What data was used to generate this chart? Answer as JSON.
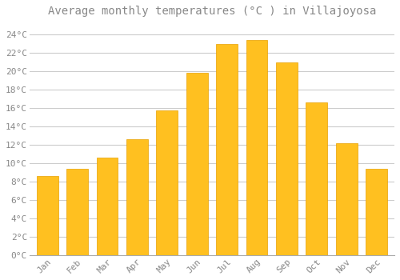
{
  "title": "Average monthly temperatures (°C ) in Villajoyosa",
  "months": [
    "Jan",
    "Feb",
    "Mar",
    "Apr",
    "May",
    "Jun",
    "Jul",
    "Aug",
    "Sep",
    "Oct",
    "Nov",
    "Dec"
  ],
  "temperatures": [
    8.6,
    9.4,
    10.6,
    12.6,
    15.8,
    19.9,
    23.0,
    23.4,
    21.0,
    16.6,
    12.2,
    9.4
  ],
  "bar_color": "#FFC020",
  "bar_edge_color": "#E8A000",
  "background_color": "#FFFFFF",
  "plot_bg_color": "#FFFFFF",
  "grid_color": "#CCCCCC",
  "ytick_labels": [
    "0°C",
    "2°C",
    "4°C",
    "6°C",
    "8°C",
    "10°C",
    "12°C",
    "14°C",
    "16°C",
    "18°C",
    "20°C",
    "22°C",
    "24°C"
  ],
  "ytick_values": [
    0,
    2,
    4,
    6,
    8,
    10,
    12,
    14,
    16,
    18,
    20,
    22,
    24
  ],
  "ylim": [
    0,
    25.5
  ],
  "title_fontsize": 10,
  "tick_fontsize": 8,
  "tick_color": "#888888",
  "font_family": "monospace",
  "bar_width": 0.72
}
